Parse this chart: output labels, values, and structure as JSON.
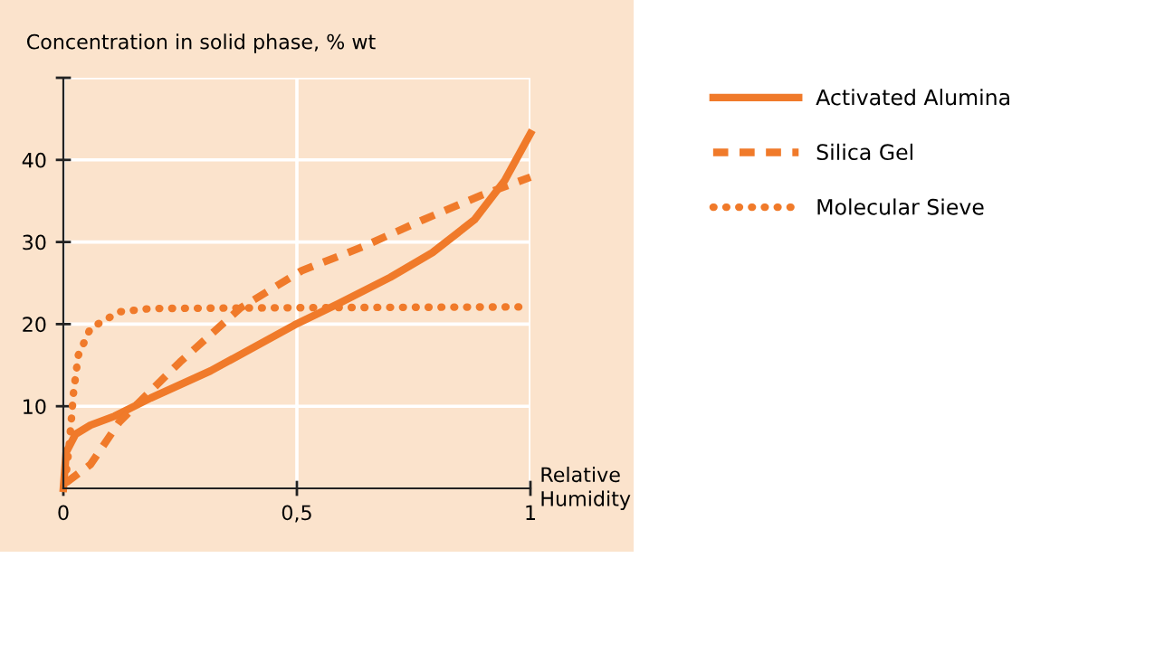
{
  "chart_data": {
    "type": "line",
    "ylabel": "Concentration in solid phase, % wt",
    "xlabel": "Relative\nHumidity",
    "xlim": [
      0,
      1
    ],
    "xticks": [
      0,
      {
        "value": 0.5,
        "label": "0,5"
      },
      1
    ],
    "ylim": [
      0,
      50
    ],
    "yticks": [
      10,
      20,
      30,
      40,
      {
        "value": 50,
        "label": null
      }
    ],
    "grid": true,
    "legend": "right",
    "series": [
      {
        "name": "Activated Alumina",
        "color": "#f07a2a",
        "line_style": "solid",
        "x": [
          0,
          0.006,
          0.026,
          0.058,
          0.11,
          0.187,
          0.315,
          0.495,
          0.586,
          0.7,
          0.79,
          0.88,
          0.945,
          1
        ],
        "values": [
          0,
          4.4,
          6.6,
          7.7,
          8.8,
          11,
          14.3,
          19.9,
          22.4,
          25.7,
          28.7,
          32.7,
          37.5,
          43.2
        ]
      },
      {
        "name": "Silica Gel",
        "color": "#f07a2a",
        "line_style": "dashed",
        "x": [
          0.006,
          0.058,
          0.12,
          0.25,
          0.38,
          0.51,
          0.64,
          0.77,
          0.895,
          1
        ],
        "values": [
          0.7,
          2.9,
          8.1,
          15.4,
          22,
          26.5,
          29.4,
          32.7,
          35.7,
          37.9
        ]
      },
      {
        "name": "Molecular Sieve",
        "color": "#f07a2a",
        "line_style": "dotted",
        "x": [
          0.004,
          0.013,
          0.022,
          0.032,
          0.058,
          0.12,
          0.187,
          0.5,
          1
        ],
        "values": [
          0.7,
          5.5,
          11.8,
          16.2,
          19.5,
          21.5,
          21.9,
          22,
          22.1
        ]
      }
    ]
  }
}
